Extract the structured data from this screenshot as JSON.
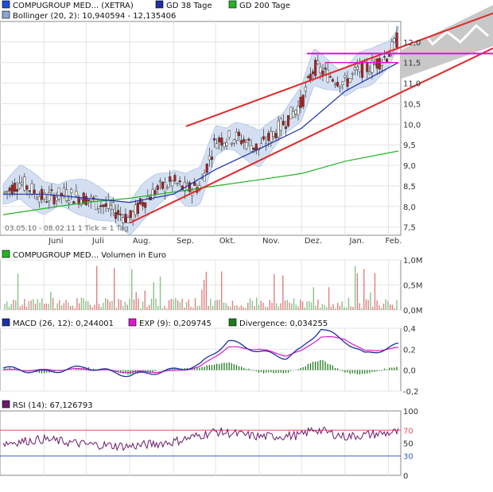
{
  "price_panel": {
    "legend": [
      {
        "label": "COMPUGROUP MED... (XETRA)",
        "color": "#1a4fd8",
        "kind": "price"
      },
      {
        "label": "GD 38 Tage",
        "color": "#1f2fa8",
        "kind": "ma"
      },
      {
        "label": "GD 200 Tage",
        "color": "#22b422",
        "kind": "ma"
      },
      {
        "label": "Bollinger (20, 2): 10,940594 - 12,135406",
        "color": "#8aa6d6",
        "kind": "band"
      }
    ],
    "footer": "03.05.10 - 08.02.11   1 Tick = 1 Tag",
    "y_ticks": [
      "12,0",
      "11,5",
      "11,0",
      "10,5",
      "10,0",
      "9,5",
      "9,0",
      "8,5",
      "8,0",
      "7,5"
    ]
  },
  "x_axis": {
    "months": [
      "Juni",
      "Juli",
      "Aug.",
      "Sep.",
      "Okt.",
      "Nov.",
      "Dez.",
      "Jan.",
      "Feb."
    ]
  },
  "volume_panel": {
    "legend": "COMPUGROUP MED... Volumen in Euro",
    "legend_color": "#22b422",
    "y_ticks": [
      "1,0M",
      "0,5M",
      "0,0M"
    ]
  },
  "macd_panel": {
    "legend": [
      {
        "label": "MACD (26, 12): 0,244001",
        "color": "#1f2fa8"
      },
      {
        "label": "EXP (9): 0,209745",
        "color": "#d81bc8"
      },
      {
        "label": "Divergence: 0,034255",
        "color": "#1e7a1e"
      }
    ],
    "y_ticks": [
      "0,4",
      "0,2",
      "0,0",
      "-0,2"
    ]
  },
  "rsi_panel": {
    "legend": "RSI (14): 67,126793",
    "legend_color": "#6b1a6b",
    "y_ticks": [
      "100",
      "70",
      "50",
      "30",
      "0"
    ]
  },
  "chart_data": [
    {
      "type": "line",
      "panel": "price",
      "title": "COMPUGROUP MED... (XETRA)",
      "x_range": [
        "03.05.10",
        "08.02.11"
      ],
      "ylim": [
        7.3,
        12.5
      ],
      "series": [
        {
          "name": "COMPUGROUP MED... (XETRA)",
          "x": [
            "2010-05-03",
            "2010-05-15",
            "2010-06-01",
            "2010-06-15",
            "2010-07-01",
            "2010-07-15",
            "2010-08-01",
            "2010-08-10",
            "2010-08-20",
            "2010-09-01",
            "2010-09-10",
            "2010-09-20",
            "2010-10-01",
            "2010-10-15",
            "2010-11-01",
            "2010-11-15",
            "2010-12-01",
            "2010-12-10",
            "2010-12-20",
            "2011-01-01",
            "2011-01-10",
            "2011-01-20",
            "2011-02-01",
            "2011-02-08"
          ],
          "values": [
            8.3,
            8.6,
            8.2,
            8.3,
            8.2,
            8.0,
            7.7,
            8.1,
            8.4,
            8.6,
            8.4,
            8.5,
            9.6,
            9.7,
            9.4,
            9.9,
            10.5,
            11.4,
            11.2,
            11.0,
            11.3,
            11.4,
            11.7,
            12.1
          ]
        },
        {
          "name": "GD 38 Tage",
          "x": [
            "2010-05-03",
            "2010-06-01",
            "2010-07-01",
            "2010-08-01",
            "2010-09-01",
            "2010-10-01",
            "2010-11-01",
            "2010-12-01",
            "2011-01-01",
            "2011-02-08"
          ],
          "values": [
            8.3,
            8.3,
            8.2,
            8.1,
            8.3,
            8.9,
            9.4,
            9.9,
            10.8,
            11.5
          ]
        },
        {
          "name": "GD 200 Tage",
          "x": [
            "2010-05-03",
            "2010-06-01",
            "2010-07-01",
            "2010-08-01",
            "2010-09-01",
            "2010-10-01",
            "2010-11-01",
            "2010-12-01",
            "2011-01-01",
            "2011-02-08"
          ],
          "values": [
            7.8,
            7.95,
            8.1,
            8.2,
            8.35,
            8.5,
            8.65,
            8.8,
            9.1,
            9.35
          ]
        }
      ],
      "trend_channel": {
        "lower": [
          7.6,
          11.55
        ],
        "upper": [
          9.9,
          12.4
        ]
      },
      "horizontal_levels": [
        11.7,
        11.5
      ]
    },
    {
      "type": "bar",
      "panel": "volume",
      "title": "COMPUGROUP MED... Volumen in Euro",
      "ylim": [
        0,
        1.0
      ],
      "ylabel": "M"
    },
    {
      "type": "line",
      "panel": "macd",
      "ylim": [
        -0.2,
        0.4
      ],
      "series": [
        {
          "name": "MACD (26, 12)",
          "x": [
            "2010-05-03",
            "2010-06-01",
            "2010-07-01",
            "2010-08-01",
            "2010-09-01",
            "2010-09-20",
            "2010-10-10",
            "2010-11-01",
            "2010-11-20",
            "2010-12-01",
            "2010-12-15",
            "2011-01-01",
            "2011-01-15",
            "2011-02-08"
          ],
          "values": [
            0.02,
            -0.02,
            0.03,
            -0.05,
            0.0,
            0.05,
            0.28,
            0.18,
            0.12,
            0.2,
            0.4,
            0.28,
            0.15,
            0.24
          ]
        },
        {
          "name": "EXP (9)",
          "x": [
            "2010-05-03",
            "2010-06-01",
            "2010-07-01",
            "2010-08-01",
            "2010-09-01",
            "2010-09-20",
            "2010-10-10",
            "2010-11-01",
            "2010-11-20",
            "2010-12-01",
            "2010-12-15",
            "2011-01-01",
            "2011-01-15",
            "2011-02-08"
          ],
          "values": [
            0.0,
            0.0,
            0.01,
            -0.02,
            -0.01,
            0.03,
            0.22,
            0.2,
            0.14,
            0.18,
            0.32,
            0.3,
            0.18,
            0.21
          ]
        }
      ]
    },
    {
      "type": "line",
      "panel": "rsi",
      "ylim": [
        0,
        100
      ],
      "series": [
        {
          "name": "RSI (14)",
          "x": [
            "2010-05-03",
            "2010-06-01",
            "2010-07-01",
            "2010-08-01",
            "2010-09-01",
            "2010-10-01",
            "2010-11-01",
            "2010-12-01",
            "2010-12-10",
            "2011-01-01",
            "2011-02-08"
          ],
          "values": [
            50,
            56,
            48,
            45,
            52,
            68,
            60,
            62,
            72,
            60,
            67
          ]
        }
      ],
      "levels": [
        70,
        30
      ]
    }
  ]
}
